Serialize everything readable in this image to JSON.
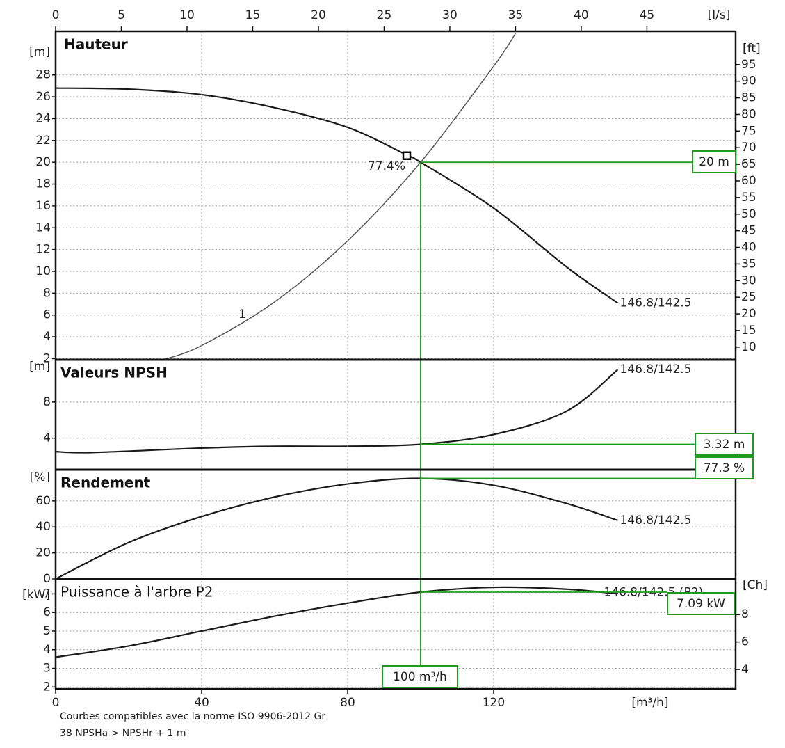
{
  "chart_data": [
    {
      "type": "line",
      "title": "Hauteur",
      "y_label": "[m]",
      "y2_label": "[ft]",
      "x2_label": "[l/s]",
      "xlim": [
        0,
        186.3
      ],
      "ylim": [
        1.9,
        32
      ],
      "yticks": [
        2,
        4,
        6,
        8,
        10,
        12,
        14,
        16,
        18,
        20,
        22,
        24,
        26,
        28
      ],
      "y2lim": [
        6.2,
        105
      ],
      "y2ticks": [
        10,
        15,
        20,
        25,
        30,
        35,
        40,
        45,
        50,
        55,
        60,
        65,
        70,
        75,
        80,
        85,
        90,
        95
      ],
      "x2lim": [
        0,
        51.75
      ],
      "x2ticks": [
        0,
        5,
        10,
        15,
        20,
        25,
        30,
        35,
        40,
        45
      ],
      "grid": true,
      "series": [
        {
          "name": "146.8/142.5",
          "color": "#1a1a1a",
          "x": [
            0,
            20,
            40,
            60,
            80,
            96,
            100,
            120,
            140,
            154
          ],
          "values": [
            26.8,
            26.7,
            26.2,
            25.0,
            23.2,
            20.7,
            20,
            15.8,
            10.4,
            7.1
          ]
        },
        {
          "name": "1",
          "color": "#555555",
          "x": [
            29.5,
            40,
            60,
            80,
            100,
            120,
            126
          ],
          "values": [
            1.9,
            3.2,
            7.2,
            12.8,
            20,
            28.8,
            31.8
          ]
        }
      ],
      "marker": {
        "x": 96.2,
        "y": 20.6,
        "label": "77.4%"
      },
      "operating_point": {
        "x": 100,
        "y": 20,
        "label": "20 m"
      }
    },
    {
      "type": "line",
      "title": "Valeurs NPSH",
      "y_label": "[m]",
      "xlim": [
        0,
        186.3
      ],
      "ylim": [
        0.5,
        12.7
      ],
      "yticks": [
        4,
        8
      ],
      "grid": true,
      "series": [
        {
          "name": "146.8/142.5",
          "color": "#1a1a1a",
          "x": [
            0,
            10,
            40,
            60,
            80,
            100,
            120,
            140,
            154
          ],
          "values": [
            2.5,
            2.4,
            2.9,
            3.1,
            3.1,
            3.32,
            4.4,
            7.0,
            11.6
          ]
        }
      ],
      "operating_point": {
        "x": 100,
        "y": 3.32,
        "label": "3.32 m"
      }
    },
    {
      "type": "line",
      "title": "Rendement",
      "y_label": "[%]",
      "xlim": [
        0,
        186.3
      ],
      "ylim": [
        0,
        84
      ],
      "yticks": [
        0,
        20,
        40,
        60
      ],
      "grid": true,
      "series": [
        {
          "name": "146.8/142.5",
          "color": "#1a1a1a",
          "x": [
            0,
            20,
            40,
            60,
            80,
            100,
            120,
            140,
            154
          ],
          "values": [
            0,
            28,
            48,
            63,
            73,
            77.3,
            72,
            58,
            45
          ]
        }
      ],
      "operating_point": {
        "x": 100,
        "y": 77.3,
        "label": "77.3 %"
      }
    },
    {
      "type": "line",
      "title": "Puissance à l'arbre P2",
      "y_label": "[kW]",
      "y2_label": "[Ch]",
      "x_label": "[m³/h]",
      "xlim": [
        0,
        186.3
      ],
      "xticks": [
        0,
        40,
        80,
        120
      ],
      "ylim": [
        1.9,
        7.8
      ],
      "yticks": [
        2,
        3,
        4,
        5,
        6,
        7
      ],
      "y2lim": [
        2.58,
        10.6
      ],
      "y2ticks": [
        4,
        6,
        8
      ],
      "grid": true,
      "series": [
        {
          "name": "146.8/142.5 (P2)",
          "color": "#1a1a1a",
          "x": [
            0,
            20,
            40,
            60,
            80,
            100,
            120,
            140,
            154
          ],
          "values": [
            3.6,
            4.2,
            5.0,
            5.8,
            6.5,
            7.09,
            7.35,
            7.25,
            7.0
          ]
        }
      ],
      "operating_point": {
        "x": 100,
        "y": 7.09,
        "label": "7.09 kW",
        "x_label": "100 m³/h"
      }
    }
  ],
  "footnote": [
    "Courbes compatibles avec la norme ISO 9906-2012 Gr",
    "38 NPSHa > NPSHr + 1 m"
  ]
}
